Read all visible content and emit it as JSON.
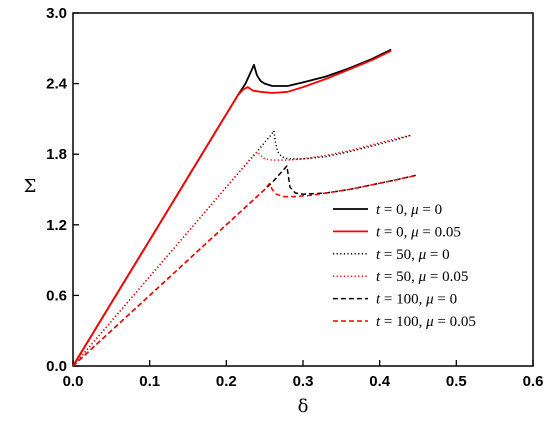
{
  "chart_data": {
    "type": "line",
    "title": "",
    "xlabel": "δ",
    "ylabel": "Σ",
    "xlim": [
      0.0,
      0.6
    ],
    "ylim": [
      0.0,
      3.0
    ],
    "xticks": [
      "0.0",
      "0.1",
      "0.2",
      "0.3",
      "0.4",
      "0.5",
      "0.6"
    ],
    "yticks": [
      "0.0",
      "0.6",
      "1.2",
      "1.8",
      "2.4",
      "3.0"
    ],
    "grid": false,
    "legend_position": "lower-right",
    "series": [
      {
        "name_parts": [
          "t",
          " = 0, ",
          "μ",
          " = 0"
        ],
        "color": "#000000",
        "dash": "solid",
        "x": [
          0.0,
          0.05,
          0.1,
          0.15,
          0.2,
          0.215,
          0.225,
          0.232,
          0.236,
          0.24,
          0.245,
          0.25,
          0.26,
          0.28,
          0.3,
          0.33,
          0.36,
          0.39,
          0.415
        ],
        "y": [
          0.0,
          0.535,
          1.07,
          1.605,
          2.14,
          2.3,
          2.4,
          2.5,
          2.56,
          2.47,
          2.42,
          2.4,
          2.38,
          2.38,
          2.41,
          2.46,
          2.53,
          2.61,
          2.69
        ]
      },
      {
        "name_parts": [
          "t",
          " = 0, ",
          "μ",
          " = 0.05"
        ],
        "color": "#ff0000",
        "dash": "solid",
        "x": [
          0.0,
          0.05,
          0.1,
          0.15,
          0.2,
          0.215,
          0.222,
          0.228,
          0.235,
          0.245,
          0.26,
          0.28,
          0.3,
          0.33,
          0.36,
          0.39,
          0.415
        ],
        "y": [
          0.0,
          0.535,
          1.07,
          1.605,
          2.14,
          2.3,
          2.35,
          2.37,
          2.34,
          2.33,
          2.32,
          2.33,
          2.37,
          2.44,
          2.52,
          2.6,
          2.68
        ]
      },
      {
        "name_parts": [
          "t",
          " = 50, ",
          "μ",
          " = 0"
        ],
        "color": "#000000",
        "dash": "dotted",
        "x": [
          0.0,
          0.05,
          0.1,
          0.15,
          0.2,
          0.24,
          0.25,
          0.258,
          0.262,
          0.264,
          0.267,
          0.272,
          0.28,
          0.3,
          0.33,
          0.36,
          0.39,
          0.42,
          0.44
        ],
        "y": [
          0.0,
          0.38,
          0.76,
          1.14,
          1.52,
          1.82,
          1.9,
          1.96,
          2.0,
          1.9,
          1.82,
          1.78,
          1.76,
          1.76,
          1.78,
          1.82,
          1.87,
          1.92,
          1.96
        ]
      },
      {
        "name_parts": [
          "t",
          " = 50, ",
          "μ",
          " = 0.05"
        ],
        "color": "#ff0000",
        "dash": "dotted",
        "x": [
          0.0,
          0.05,
          0.1,
          0.15,
          0.2,
          0.235,
          0.24,
          0.245,
          0.25,
          0.26,
          0.28,
          0.3,
          0.33,
          0.36,
          0.39,
          0.42,
          0.44
        ],
        "y": [
          0.0,
          0.38,
          0.76,
          1.14,
          1.52,
          1.79,
          1.82,
          1.79,
          1.76,
          1.75,
          1.75,
          1.76,
          1.79,
          1.83,
          1.88,
          1.93,
          1.96
        ]
      },
      {
        "name_parts": [
          "t",
          " = 100, ",
          "μ",
          " = 0"
        ],
        "color": "#000000",
        "dash": "dashed",
        "x": [
          0.0,
          0.05,
          0.1,
          0.15,
          0.2,
          0.25,
          0.26,
          0.268,
          0.275,
          0.279,
          0.283,
          0.29,
          0.3,
          0.33,
          0.36,
          0.39,
          0.42,
          0.447
        ],
        "y": [
          0.0,
          0.3,
          0.6,
          0.9,
          1.2,
          1.5,
          1.56,
          1.62,
          1.67,
          1.7,
          1.52,
          1.47,
          1.46,
          1.47,
          1.5,
          1.54,
          1.58,
          1.62
        ]
      },
      {
        "name_parts": [
          "t",
          " = 100, ",
          "μ",
          " = 0.05"
        ],
        "color": "#ff0000",
        "dash": "dashed",
        "x": [
          0.0,
          0.05,
          0.1,
          0.15,
          0.2,
          0.25,
          0.256,
          0.26,
          0.265,
          0.275,
          0.29,
          0.31,
          0.33,
          0.36,
          0.39,
          0.42,
          0.447
        ],
        "y": [
          0.0,
          0.3,
          0.6,
          0.9,
          1.2,
          1.5,
          1.55,
          1.5,
          1.46,
          1.44,
          1.44,
          1.45,
          1.47,
          1.5,
          1.54,
          1.58,
          1.62
        ]
      }
    ]
  }
}
